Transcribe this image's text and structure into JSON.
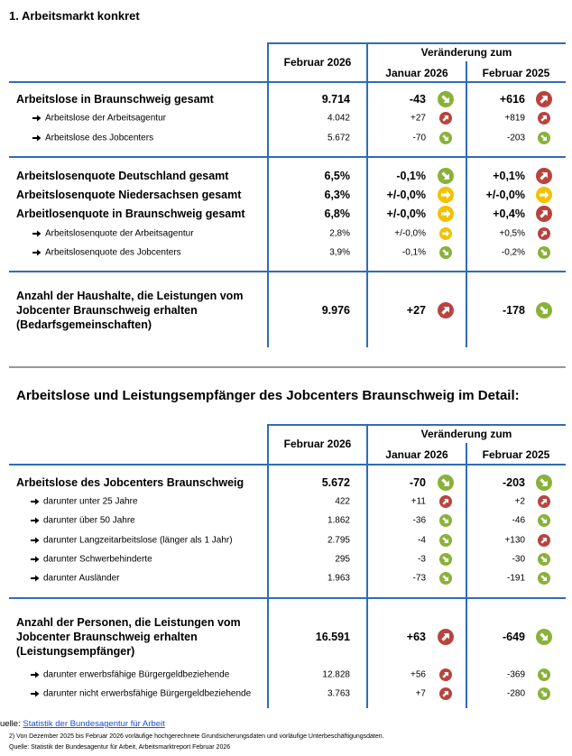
{
  "section1": {
    "title": "1. Arbeitsmarkt konkret",
    "table": {
      "header": {
        "col1": "Februar 2026",
        "group": "Veränderung zum",
        "col2": "Januar 2026",
        "col3": "Februar 2025"
      },
      "rows": [
        [
          "Arbeitslose in Braunschweig gesamt",
          "9.714",
          "-43",
          "+616"
        ],
        [
          "Arbeitslose der Arbeitsagentur",
          "4.042",
          "+27",
          "+819"
        ],
        [
          "Arbeitslose des Jobcenters",
          "5.672",
          "-70",
          "-203"
        ],
        [
          "Arbeitslosenquote Deutschland gesamt",
          "6,5%",
          "-0,1%",
          "+0,1%"
        ],
        [
          "Arbeitslosenquote Niedersachsen gesamt",
          "6,3%",
          "+/-0,0%",
          "+/-0,0%"
        ],
        [
          "Arbeitlosenquote in Braunschweig gesamt",
          "6,8%",
          "+/-0,0%",
          "+0,4%"
        ],
        [
          "Arbeitslosenquote der Arbeitsagentur",
          "2,8%",
          "+/-0,0%",
          "+0,5%"
        ],
        [
          "Arbeitslosenquote des Jobcenters",
          "3,9%",
          "-0,1%",
          "-0,2%"
        ],
        [
          "Anzahl der Haushalte, die Leistungen vom Jobcenter Braunschweig erhalten (Bedarfsgemeinschaften)",
          "9.976",
          "+27",
          "-178"
        ]
      ]
    }
  },
  "section2": {
    "title": "Arbeitslose und Leistungsempfänger des Jobcenters Braunschweig im Detail:",
    "table": {
      "header": {
        "col1": "Februar 2026",
        "group": "Veränderung zum",
        "col2": "Januar 2026",
        "col3": "Februar 2025"
      },
      "rows": [
        [
          "Arbeitslose des Jobcenters Braunschweig",
          "5.672",
          "-70",
          "-203"
        ],
        [
          "darunter unter 25 Jahre",
          "422",
          "+11",
          "+2"
        ],
        [
          "darunter über 50 Jahre",
          "1.862",
          "-36",
          "-46"
        ],
        [
          "darunter Langzeitarbeitslose (länger als 1 Jahr)",
          "2.795",
          "-4",
          "+130"
        ],
        [
          "darunter Schwerbehinderte",
          "295",
          "-3",
          "-30"
        ],
        [
          "darunter Ausländer",
          "1.963",
          "-73",
          "-191"
        ],
        [
          "Anzahl der Personen, die Leistungen vom Jobcenter Braunschweig erhalten (Leistungsempfänger)",
          "16.591",
          "+63",
          "-649"
        ],
        [
          "darunter erwerbsfähige Bürgergeldbeziehende",
          "12.828",
          "+56",
          "-369"
        ],
        [
          "darunter nicht erwerbsfähige Bürgergeldbeziehende",
          "3.763",
          "+7",
          "-280"
        ]
      ]
    }
  },
  "footer": {
    "source_prefix": "uelle:",
    "source_link": "Statistik der Bundesagentur für Arbeit",
    "note": "2) Von Dezember 2025 bis Februar 2026 vorläufige hochgerechnete Grundsicherungsdaten und vorläufige Unterbeschäftigungsdaten.",
    "source": "Quelle: Statistik der Bundesagentur für Arbeit, Arbeitsmarktreport Februar 2026"
  }
}
